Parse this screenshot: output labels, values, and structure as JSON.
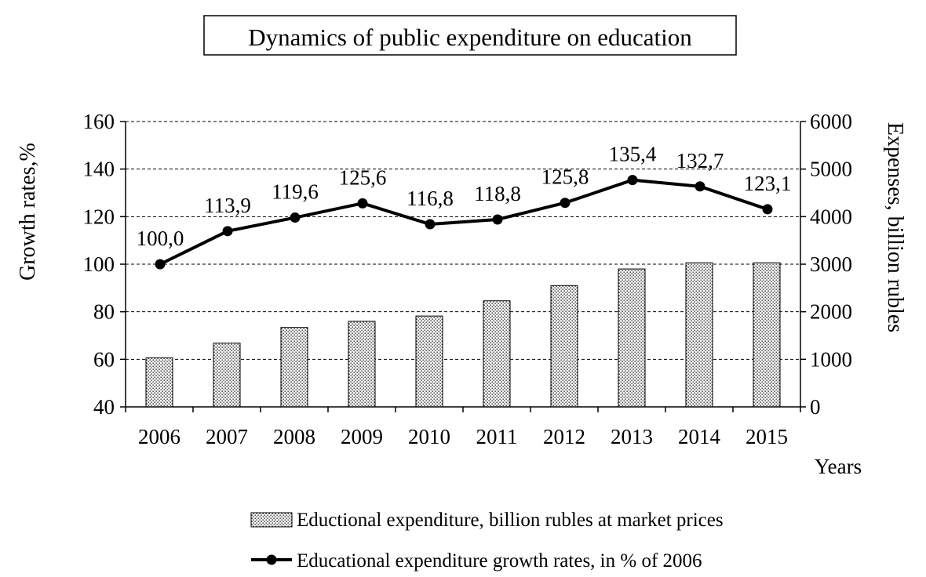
{
  "chart_data": {
    "type": "bar",
    "title": "Dynamics of public expenditure on education",
    "xlabel": "Years",
    "ylabel_left": "Growth rates,%",
    "ylabel_right": "Expenses, billion rubles",
    "categories": [
      "2006",
      "2007",
      "2008",
      "2009",
      "2010",
      "2011",
      "2012",
      "2013",
      "2014",
      "2015"
    ],
    "y_left_lim": [
      40,
      160
    ],
    "y_left_ticks": [
      "40",
      "60",
      "80",
      "100",
      "120",
      "140",
      "160"
    ],
    "y_right_lim": [
      0,
      6000
    ],
    "y_right_ticks": [
      "0",
      "1000",
      "2000",
      "3000",
      "4000",
      "5000",
      "6000"
    ],
    "grid": "horizontal dashed",
    "legend_position": "bottom",
    "series": [
      {
        "name": "Eductional expenditure, billion rubles at market prices",
        "type": "bar",
        "axis": "right",
        "style": "dotted",
        "values": [
          1030,
          1340,
          1670,
          1800,
          1910,
          2230,
          2550,
          2900,
          3030,
          3030
        ]
      },
      {
        "name": "Educational expenditure growth rates, in % of 2006",
        "type": "line",
        "axis": "left",
        "marker": "circle",
        "values": [
          100.0,
          113.9,
          119.6,
          125.6,
          116.8,
          118.8,
          125.8,
          135.4,
          132.7,
          123.1
        ],
        "labels": [
          "100,0",
          "113,9",
          "119,6",
          "125,6",
          "116,8",
          "118,8",
          "125,8",
          "135,4",
          "132,7",
          "123,1"
        ]
      }
    ]
  }
}
